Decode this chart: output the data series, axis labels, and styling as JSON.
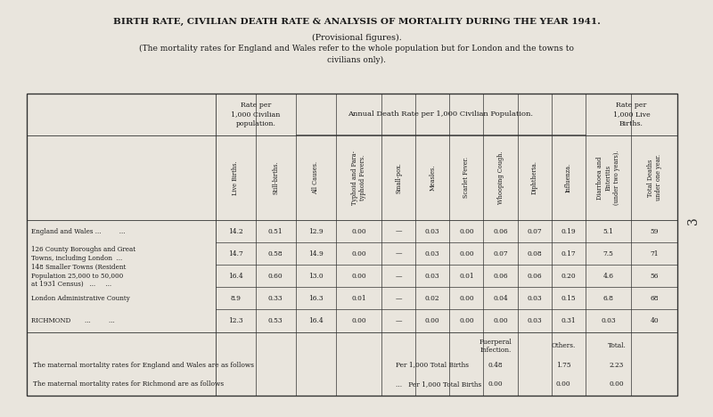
{
  "title1": "BIRTH RATE, CIVILIAN DEATH RATE & ANALYSIS OF MORTALITY DURING THE YEAR 1941.",
  "title2": "(Provisional figures).",
  "title3": "(The mortality rates for England and Wales refer to the whole population but for London and the towns to",
  "title4": "civilians only).",
  "bg_color": "#e9e5dd",
  "page_number": "3",
  "header_group1": "Rate per\n1,000 Civilian\npopulation.",
  "header_group2": "Annual Death Rate per 1,000 Civilian Population.",
  "header_group3": "Rate per\n1,000 Live\nBirths.",
  "col_headers": [
    "Live Births.",
    "Still-births.",
    "All Causes.",
    "Typhoid and Para-\ntyphoid Fevers.",
    "Small-pox.",
    "Measles.",
    "Scarlet Fever.",
    "Whooping Cough.",
    "Diphtheria.",
    "Influenza.",
    "Diarrhoea and\nEnteritis\n(under two years).",
    "Total Deaths\nunder one year."
  ],
  "row_labels": [
    "England and Wales ...         ...",
    "126 County Boroughs and Great\nTowns, including London  ...",
    "148 Smaller Towns (Resident\nPopulation 25,000 to 50,000\nat 1931 Census)   ...     ...",
    "London Administrative County",
    "RICHMOND       ...         ..."
  ],
  "data_str_vals": [
    [
      "14.2",
      "0.51",
      "12.9",
      "0.00",
      "—",
      "0.03",
      "0.00",
      "0.06",
      "0.07",
      "0.19",
      "5.1",
      "59"
    ],
    [
      "14.7",
      "0.58",
      "14.9",
      "0.00",
      "—",
      "0.03",
      "0.00",
      "0.07",
      "0.08",
      "0.17",
      "7.5",
      "71"
    ],
    [
      "16.4",
      "0.60",
      "13.0",
      "0.00",
      "—",
      "0.03",
      "0.01",
      "0.06",
      "0.06",
      "0.20",
      "4.6",
      "56"
    ],
    [
      "8.9",
      "0.33",
      "16.3",
      "0.01",
      "—",
      "0.02",
      "0.00",
      "0.04",
      "0.03",
      "0.15",
      "6.8",
      "68"
    ],
    [
      "12.3",
      "0.53",
      "16.4",
      "0.00",
      "—",
      "0.00",
      "0.00",
      "0.00",
      "0.03",
      "0.31",
      "0.03",
      "40"
    ]
  ],
  "footnote1_label": "The maternal mortality rates for England and Wales are as follows",
  "footnote1_sub": "Per 1,000 Total Births",
  "footnote1_vals": [
    "0.48",
    "1.75",
    "2.23"
  ],
  "footnote2_label": "The maternal mortality rates for Richmond are as follows",
  "footnote2_sub": "...   Per 1,000 Total Births",
  "footnote2_vals": [
    "0.00",
    "0.00",
    "0.00"
  ],
  "footnote_col_headers": [
    "Puerperal\nInfection.",
    "Others.",
    "Total."
  ]
}
